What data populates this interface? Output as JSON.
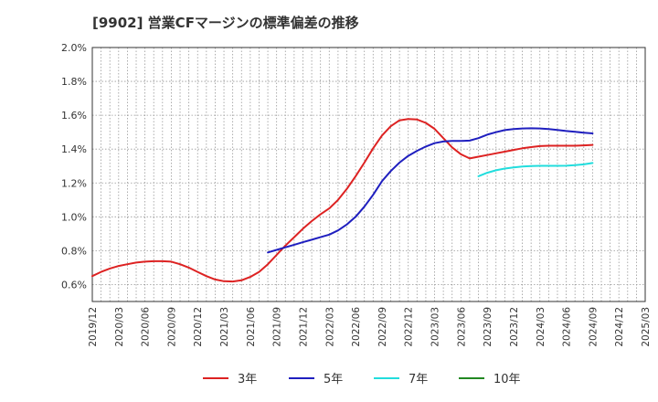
{
  "chart_data": {
    "type": "line",
    "title": "[9902]  営業CFマージンの標準偏差の推移",
    "xlabel": "",
    "ylabel": "",
    "ylim": [
      0.5,
      2.0
    ],
    "y_ticks": [
      "0.6%",
      "0.8%",
      "1.0%",
      "1.2%",
      "1.4%",
      "1.6%",
      "1.8%",
      "2.0%"
    ],
    "x_ticks": [
      "2019/12",
      "2020/03",
      "2020/06",
      "2020/09",
      "2020/12",
      "2021/03",
      "2021/06",
      "2021/09",
      "2021/12",
      "2022/03",
      "2022/06",
      "2022/09",
      "2022/12",
      "2023/03",
      "2023/06",
      "2023/09",
      "2023/12",
      "2024/03",
      "2024/06",
      "2024/09",
      "2024/12",
      "2025/03"
    ],
    "grid": true,
    "legend_position": "bottom",
    "series": [
      {
        "name": "3年",
        "color": "#dd2222",
        "x": [
          "2019/12",
          "2020/01",
          "2020/02",
          "2020/03",
          "2020/04",
          "2020/05",
          "2020/06",
          "2020/07",
          "2020/08",
          "2020/09",
          "2020/10",
          "2020/11",
          "2020/12",
          "2021/01",
          "2021/02",
          "2021/03",
          "2021/04",
          "2021/05",
          "2021/06",
          "2021/07",
          "2021/08",
          "2021/09",
          "2021/10",
          "2021/11",
          "2021/12",
          "2022/01",
          "2022/02",
          "2022/03",
          "2022/04",
          "2022/05",
          "2022/06",
          "2022/07",
          "2022/08",
          "2022/09",
          "2022/10",
          "2022/11",
          "2022/12",
          "2023/01",
          "2023/02",
          "2023/03",
          "2023/04",
          "2023/05",
          "2023/06",
          "2023/07",
          "2023/08",
          "2023/09",
          "2023/10",
          "2023/11",
          "2023/12",
          "2024/01",
          "2024/02",
          "2024/03",
          "2024/04",
          "2024/05",
          "2024/06",
          "2024/07",
          "2024/08",
          "2024/09"
        ],
        "values": [
          0.65,
          0.675,
          0.695,
          0.71,
          0.72,
          0.73,
          0.735,
          0.738,
          0.738,
          0.735,
          0.72,
          0.7,
          0.675,
          0.65,
          0.63,
          0.62,
          0.618,
          0.625,
          0.645,
          0.675,
          0.72,
          0.775,
          0.83,
          0.88,
          0.93,
          0.975,
          1.015,
          1.05,
          1.1,
          1.165,
          1.24,
          1.32,
          1.405,
          1.48,
          1.535,
          1.57,
          1.578,
          1.575,
          1.555,
          1.52,
          1.465,
          1.41,
          1.37,
          1.345,
          1.355,
          1.365,
          1.375,
          1.385,
          1.395,
          1.405,
          1.412,
          1.418,
          1.42,
          1.42,
          1.42,
          1.42,
          1.422,
          1.425
        ]
      },
      {
        "name": "5年",
        "color": "#1f1fbf",
        "x": [
          "2021/08",
          "2021/09",
          "2021/10",
          "2021/11",
          "2021/12",
          "2022/01",
          "2022/02",
          "2022/03",
          "2022/04",
          "2022/05",
          "2022/06",
          "2022/07",
          "2022/08",
          "2022/09",
          "2022/10",
          "2022/11",
          "2022/12",
          "2023/01",
          "2023/02",
          "2023/03",
          "2023/04",
          "2023/05",
          "2023/06",
          "2023/07",
          "2023/08",
          "2023/09",
          "2023/10",
          "2023/11",
          "2023/12",
          "2024/01",
          "2024/02",
          "2024/03",
          "2024/04",
          "2024/05",
          "2024/06",
          "2024/07",
          "2024/08",
          "2024/09"
        ],
        "values": [
          0.79,
          0.805,
          0.82,
          0.835,
          0.85,
          0.865,
          0.88,
          0.895,
          0.92,
          0.955,
          1.0,
          1.06,
          1.13,
          1.21,
          1.27,
          1.32,
          1.36,
          1.39,
          1.415,
          1.435,
          1.445,
          1.448,
          1.448,
          1.45,
          1.465,
          1.485,
          1.5,
          1.512,
          1.518,
          1.522,
          1.523,
          1.522,
          1.518,
          1.513,
          1.507,
          1.502,
          1.497,
          1.493
        ]
      },
      {
        "name": "7年",
        "color": "#22dddd",
        "x": [
          "2023/08",
          "2023/09",
          "2023/10",
          "2023/11",
          "2023/12",
          "2024/01",
          "2024/02",
          "2024/03",
          "2024/04",
          "2024/05",
          "2024/06",
          "2024/07",
          "2024/08",
          "2024/09"
        ],
        "values": [
          1.24,
          1.26,
          1.275,
          1.285,
          1.292,
          1.297,
          1.3,
          1.301,
          1.301,
          1.301,
          1.302,
          1.305,
          1.31,
          1.318
        ]
      },
      {
        "name": "10年",
        "color": "#228822",
        "x": [],
        "values": []
      }
    ]
  }
}
